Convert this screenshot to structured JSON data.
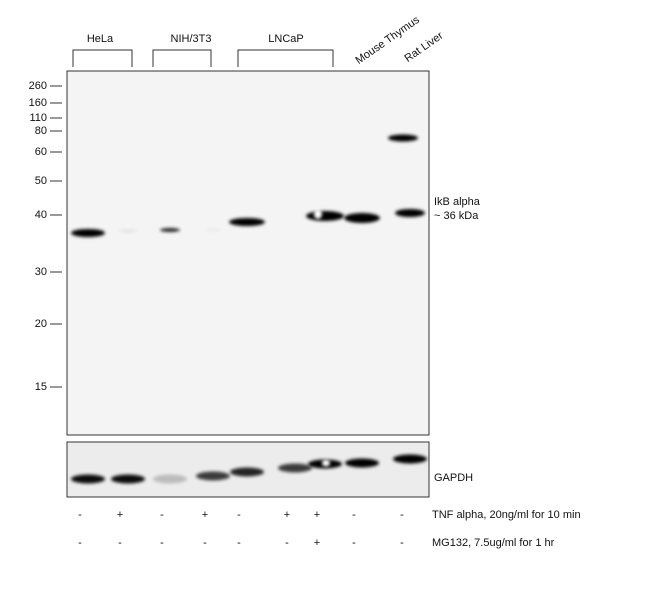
{
  "lane_groups": [
    "HeLa",
    "NIH/3T3",
    "LNCaP"
  ],
  "lane_singles": [
    "Mouse Thymus",
    "Rat Liver"
  ],
  "markers": [
    260,
    160,
    110,
    80,
    60,
    50,
    40,
    30,
    20,
    15
  ],
  "target_band": [
    "IkB alpha",
    "~ 36 kDa"
  ],
  "loading_band": "GAPDH",
  "treatments": [
    {
      "signs": [
        "-",
        "+",
        "-",
        "+",
        "-",
        "+",
        "+",
        "-",
        "-"
      ],
      "label": "TNF alpha, 20ng/ml for 10 min"
    },
    {
      "signs": [
        "-",
        "-",
        "-",
        "-",
        "-",
        "-",
        "+",
        "-",
        "-"
      ],
      "label": "MG132, 7.5ug/ml for 1 hr"
    }
  ]
}
